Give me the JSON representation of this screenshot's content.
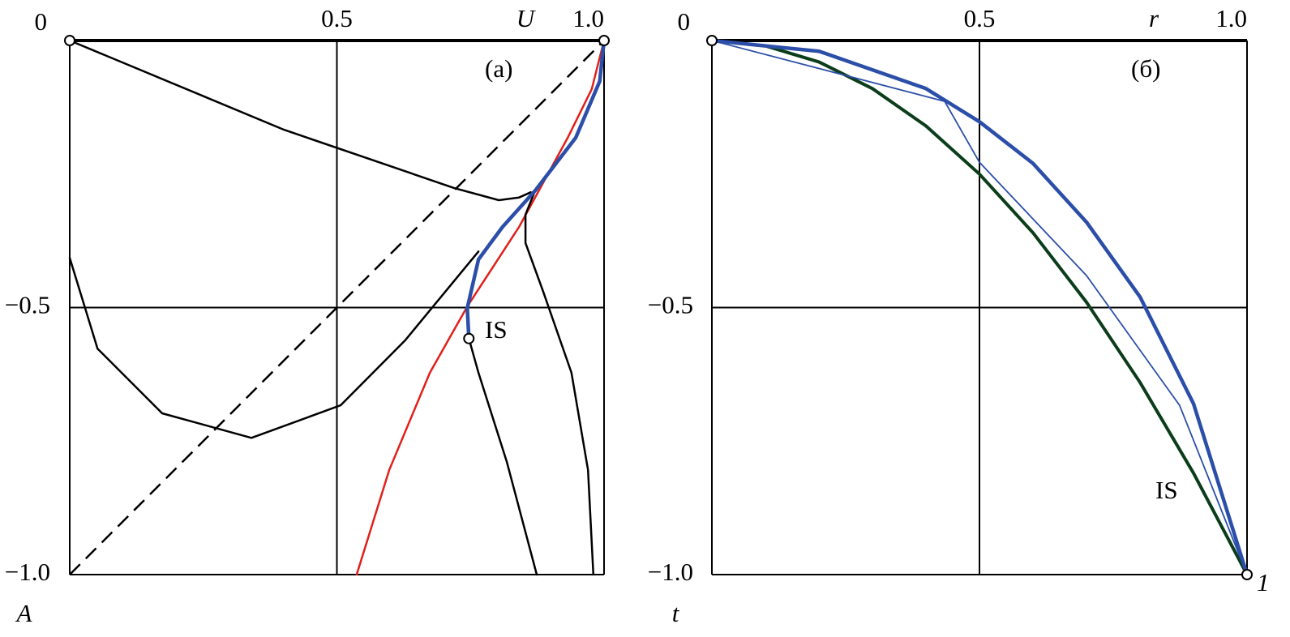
{
  "chart_data": [
    {
      "type": "line",
      "xlabel": "U",
      "ylabel": "A",
      "annotations": [
        "(a)",
        "IS"
      ],
      "xlim": [
        0,
        1
      ],
      "ylim": [
        -1,
        0
      ],
      "xticks": [
        0.5,
        {
          "value": 1,
          "label": "1.0"
        }
      ],
      "yticks": [
        0,
        {
          "value": -0.5,
          "label": "−0.5"
        },
        {
          "value": -1,
          "label": "−1.0"
        }
      ],
      "grid": true,
      "series": [
        {
          "color": "#000000",
          "linewidth": 2.5,
          "x": [
            0,
            0.401,
            0.719,
            0.803,
            0.841,
            0.863
          ],
          "values": [
            0,
            -0.167,
            -0.276,
            -0.299,
            -0.294,
            -0.284
          ]
        },
        {
          "color": "#e0201b",
          "linewidth": 2.5,
          "x": [
            0.537,
            0.598,
            0.674,
            0.744,
            0.841,
            0.932,
            0.977,
            1
          ],
          "values": [
            -1,
            -0.804,
            -0.622,
            -0.498,
            -0.349,
            -0.182,
            -0.091,
            0
          ]
        },
        {
          "color": "#000000",
          "linewidth": 2.5,
          "x": [
            0,
            0.052,
            0.173,
            0.34,
            0.507,
            0.628,
            0.765
          ],
          "values": [
            -0.407,
            -0.577,
            -0.698,
            -0.744,
            -0.683,
            -0.561,
            -0.395
          ]
        },
        {
          "color": "#000000",
          "linewidth": 2.5,
          "x": [
            0.874,
            0.818,
            0.765,
            0.747
          ],
          "values": [
            -1,
            -0.789,
            -0.622,
            -0.558
          ]
        },
        {
          "color": "#000000",
          "linewidth": 2.5,
          "x": [
            0.98,
            0.97,
            0.939,
            0.886,
            0.853,
            0.853,
            0.871
          ],
          "values": [
            -1,
            -0.804,
            -0.622,
            -0.47,
            -0.379,
            -0.326,
            -0.281
          ]
        },
        {
          "color": "#000000",
          "linewidth": 2.5,
          "linestyle": "dashed",
          "x": [
            0,
            1
          ],
          "values": [
            -1,
            0
          ]
        },
        {
          "color": "#2b4ea8",
          "linewidth": 4.5,
          "x": [
            0.747,
            0.744,
            0.765,
            0.81,
            0.871,
            0.947,
            0.992,
            1
          ],
          "values": [
            -0.558,
            -0.501,
            -0.41,
            -0.349,
            -0.281,
            -0.182,
            -0.076,
            0
          ]
        }
      ],
      "markers": {
        "x": [
          0,
          1,
          0.747
        ],
        "values": [
          0,
          0,
          -0.558
        ]
      }
    },
    {
      "type": "line",
      "xlabel": "r",
      "ylabel": "t",
      "annotations": [
        "(б)",
        "IS",
        "1"
      ],
      "xlim": [
        0,
        1
      ],
      "ylim": [
        -1,
        0
      ],
      "xticks": [
        0.5,
        {
          "value": 1,
          "label": "1.0"
        }
      ],
      "yticks": [
        0,
        {
          "value": -0.5,
          "label": "−0.5"
        },
        {
          "value": -1,
          "label": "−1.0"
        }
      ],
      "grid": true,
      "series": [
        {
          "color": "#0b3d1a",
          "linewidth": 4,
          "x": [
            0,
            0.1,
            0.2,
            0.3,
            0.4,
            0.5,
            0.6,
            0.7,
            0.8,
            0.9,
            1
          ],
          "values": [
            0,
            -0.01,
            -0.04,
            -0.09,
            -0.16,
            -0.25,
            -0.36,
            -0.49,
            -0.64,
            -0.81,
            -1
          ]
        },
        {
          "color": "#2b4ea8",
          "linewidth": 1.8,
          "x": [
            0,
            0.435,
            0.5,
            0.7,
            0.874,
            1
          ],
          "values": [
            0,
            -0.114,
            -0.228,
            -0.44,
            -0.683,
            -1
          ]
        },
        {
          "color": "#2b4ea8",
          "linewidth": 4.5,
          "x": [
            0,
            0.2,
            0.4,
            0.5,
            0.6,
            0.7,
            0.8,
            0.9,
            1
          ],
          "values": [
            0,
            -0.02,
            -0.09,
            -0.152,
            -0.23,
            -0.34,
            -0.48,
            -0.68,
            -1
          ]
        }
      ],
      "markers": {
        "x": [
          0,
          1
        ],
        "values": [
          0,
          -1
        ]
      }
    }
  ]
}
